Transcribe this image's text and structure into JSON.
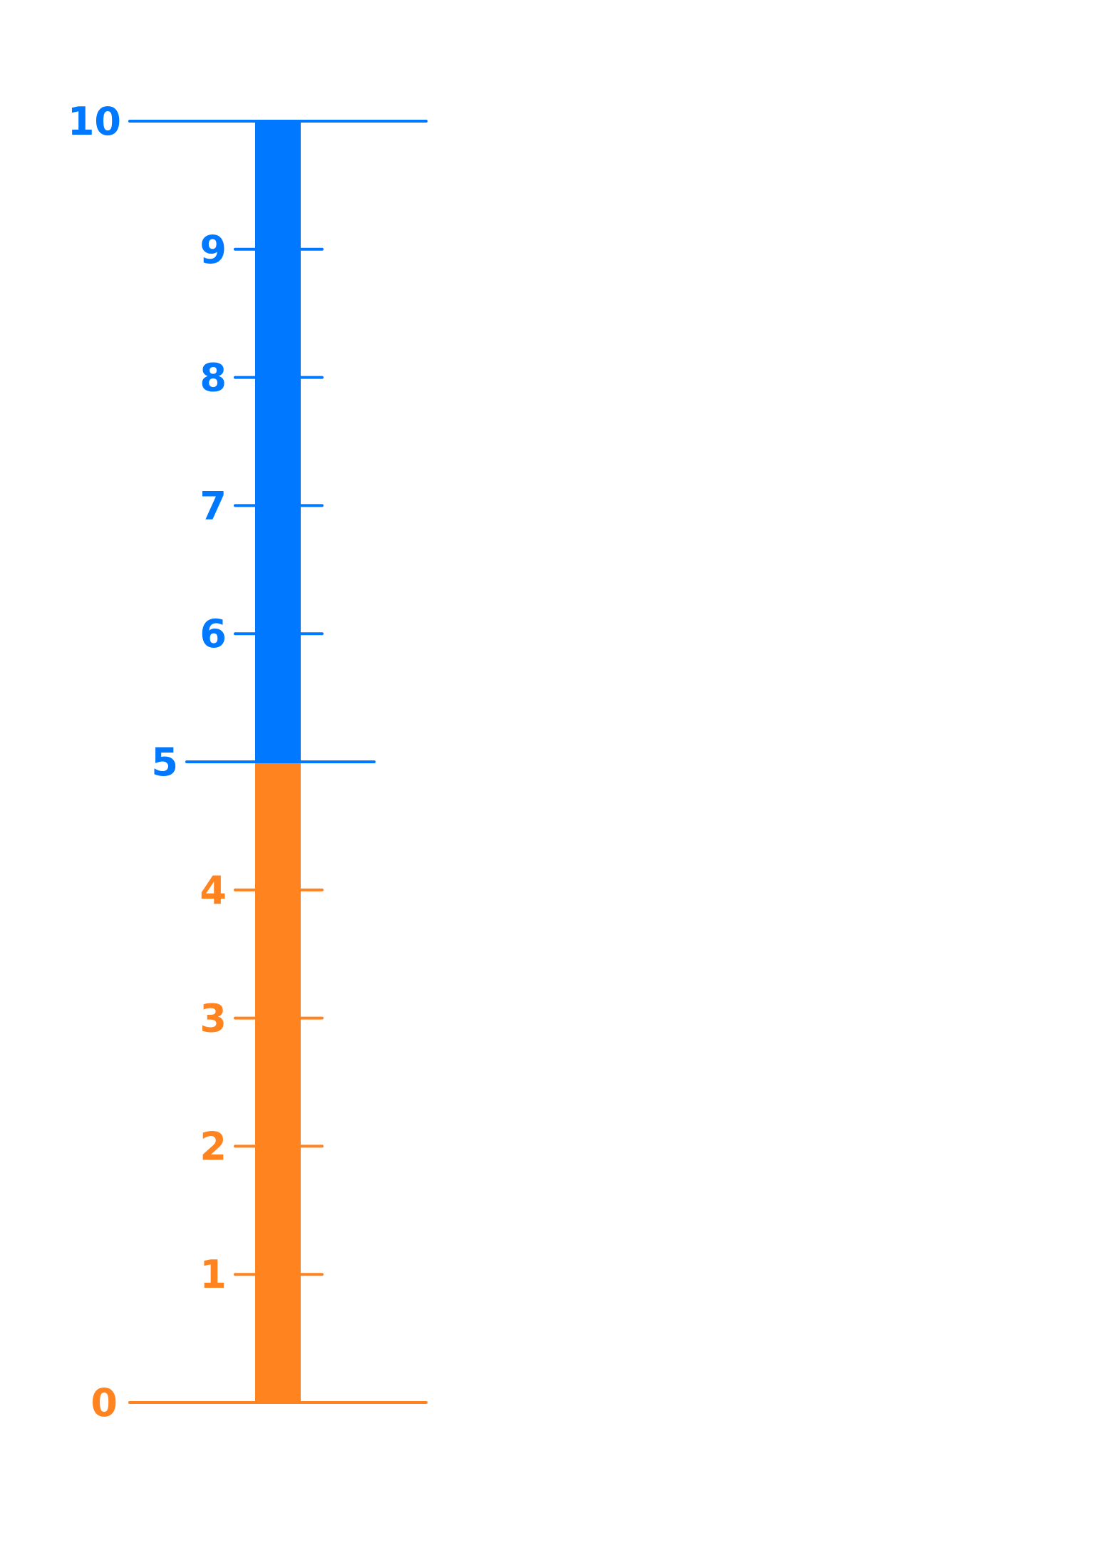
{
  "scale": {
    "min": 0,
    "max": 10,
    "split_value": 5,
    "lower_color": "#FF831F",
    "upper_color": "#0078FF",
    "ticks": [
      {
        "value": 0,
        "label": "0"
      },
      {
        "value": 1,
        "label": "1"
      },
      {
        "value": 2,
        "label": "2"
      },
      {
        "value": 3,
        "label": "3"
      },
      {
        "value": 4,
        "label": "4"
      },
      {
        "value": 5,
        "label": "5"
      },
      {
        "value": 6,
        "label": "6"
      },
      {
        "value": 7,
        "label": "7"
      },
      {
        "value": 8,
        "label": "8"
      },
      {
        "value": 9,
        "label": "9"
      },
      {
        "value": 10,
        "label": "10"
      }
    ]
  }
}
